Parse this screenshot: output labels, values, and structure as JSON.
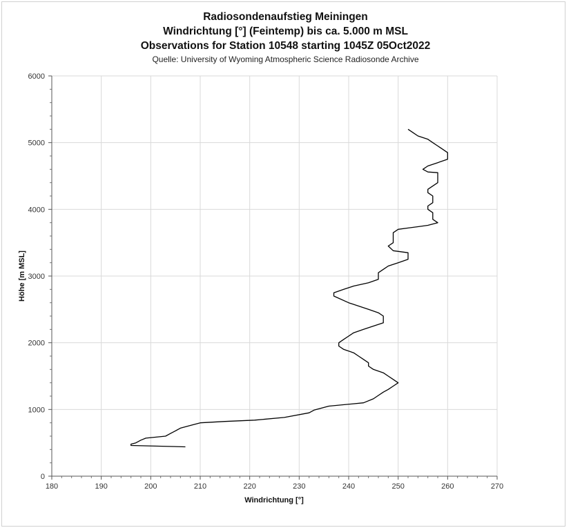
{
  "chart_data": {
    "type": "line",
    "title": "Radiosondenaufstieg Meiningen",
    "subtitle_lines": [
      "Windrichtung [°] (Feintemp) bis ca. 5.000 m MSL",
      "Observations for Station 10548 starting 1045Z 05Oct2022",
      "Quelle: University of Wyoming Atmospheric Science Radiosonde Archive"
    ],
    "xlabel": "Windrichtung [°]",
    "ylabel": "Höhe [m MSL]",
    "xlim": [
      180,
      270
    ],
    "ylim": [
      0,
      6000
    ],
    "xticks": [
      "180",
      "190",
      "200",
      "210",
      "220",
      "230",
      "240",
      "250",
      "260",
      "270"
    ],
    "yticks": [
      "0",
      "1000",
      "2000",
      "3000",
      "4000",
      "5000",
      "6000"
    ],
    "grid": true,
    "line_color": "#000000",
    "series": [
      {
        "x": [
          207,
          196,
          196,
          197,
          198,
          199,
          203,
          204,
          205,
          206,
          208,
          210,
          215,
          221,
          227,
          232,
          233,
          236,
          243,
          245,
          246,
          247,
          248,
          249,
          250,
          249,
          248,
          247,
          245,
          244,
          244,
          243,
          242,
          241,
          239,
          238,
          238,
          239,
          240,
          241,
          243,
          245,
          247,
          247,
          246,
          244,
          240,
          237,
          237,
          239,
          241,
          244,
          246,
          246,
          247,
          248,
          250,
          252,
          252,
          249,
          248,
          249,
          249,
          250,
          252,
          254,
          256,
          257,
          258,
          257,
          257,
          256,
          256,
          257,
          257,
          256,
          256,
          258,
          258,
          256,
          255,
          256,
          258,
          260,
          260,
          259,
          258,
          257,
          256,
          254,
          253,
          252
        ],
        "y": [
          440,
          460,
          480,
          500,
          540,
          570,
          600,
          640,
          680,
          720,
          760,
          800,
          820,
          840,
          880,
          950,
          990,
          1050,
          1100,
          1160,
          1210,
          1260,
          1300,
          1350,
          1400,
          1450,
          1500,
          1550,
          1600,
          1650,
          1700,
          1750,
          1800,
          1850,
          1900,
          1950,
          2000,
          2050,
          2100,
          2150,
          2200,
          2250,
          2300,
          2400,
          2450,
          2500,
          2600,
          2700,
          2750,
          2800,
          2850,
          2900,
          2950,
          3050,
          3100,
          3150,
          3200,
          3250,
          3350,
          3380,
          3450,
          3500,
          3650,
          3700,
          3720,
          3740,
          3760,
          3780,
          3800,
          3850,
          3950,
          4000,
          4050,
          4100,
          4200,
          4250,
          4300,
          4400,
          4550,
          4560,
          4600,
          4650,
          4700,
          4750,
          4850,
          4900,
          4950,
          5000,
          5050,
          5100,
          5150,
          5200
        ]
      }
    ]
  }
}
